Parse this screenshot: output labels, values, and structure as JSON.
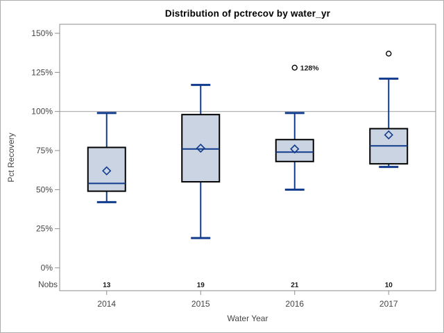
{
  "chart_data": {
    "type": "boxplot",
    "title": "Distribution of pctrecov by water_yr",
    "xlabel": "Water Year",
    "ylabel": "Pct Recovery",
    "nobs_label": "Nobs",
    "y_ticks": [
      0,
      25,
      50,
      75,
      100,
      125,
      150
    ],
    "y_tick_labels": [
      "0%",
      "25%",
      "50%",
      "75%",
      "100%",
      "125%",
      "150%"
    ],
    "ylim": [
      0,
      150
    ],
    "reference_line": 100,
    "grid": "off",
    "legend": "none",
    "categories": [
      "2014",
      "2015",
      "2016",
      "2017"
    ],
    "nobs": [
      13,
      19,
      21,
      10
    ],
    "series": [
      {
        "category": "2014",
        "nobs": 13,
        "whisker_low": 42,
        "q1": 49,
        "median": 54,
        "mean": 62,
        "q3": 77,
        "whisker_high": 99,
        "outliers": []
      },
      {
        "category": "2015",
        "nobs": 19,
        "whisker_low": 19,
        "q1": 55,
        "median": 76,
        "mean": 76.5,
        "q3": 98,
        "whisker_high": 117,
        "outliers": []
      },
      {
        "category": "2016",
        "nobs": 21,
        "whisker_low": 50,
        "q1": 68,
        "median": 74,
        "mean": 76,
        "q3": 82,
        "whisker_high": 99,
        "outliers": [
          {
            "value": 128,
            "label": "128%"
          }
        ]
      },
      {
        "category": "2017",
        "nobs": 10,
        "whisker_low": 64.5,
        "q1": 66.5,
        "median": 78,
        "mean": 85,
        "q3": 89,
        "whisker_high": 121,
        "outliers": [
          {
            "value": 137,
            "label": ""
          }
        ]
      }
    ],
    "colors": {
      "box_fill": "#CBD4E3",
      "box_stroke": "#000000",
      "line_blue": "#113B8C",
      "outlier": "#000000",
      "reference_line": "#A9A9A9",
      "frame": "#8C8C8C",
      "tick_text": "#454545",
      "label_text": "#1A1A1A",
      "title_text": "#000000"
    }
  }
}
